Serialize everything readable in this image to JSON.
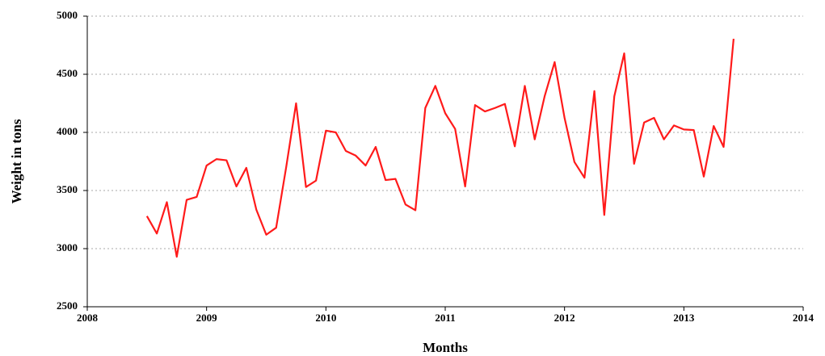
{
  "chart_data": {
    "type": "line",
    "x_label": "Months",
    "y_label": "Weight in tons",
    "x": [
      2008.5,
      2008.583,
      2008.667,
      2008.75,
      2008.833,
      2008.917,
      2009,
      2009.083,
      2009.167,
      2009.25,
      2009.333,
      2009.417,
      2009.5,
      2009.583,
      2009.667,
      2009.75,
      2009.833,
      2009.917,
      2010,
      2010.083,
      2010.167,
      2010.25,
      2010.333,
      2010.417,
      2010.5,
      2010.583,
      2010.667,
      2010.75,
      2010.833,
      2010.917,
      2011,
      2011.083,
      2011.167,
      2011.25,
      2011.333,
      2011.417,
      2011.5,
      2011.583,
      2011.667,
      2011.75,
      2011.833,
      2011.917,
      2012,
      2012.083,
      2012.167,
      2012.25,
      2012.333,
      2012.417,
      2012.5,
      2012.583,
      2012.667,
      2012.75,
      2012.833,
      2012.917,
      2013,
      2013.083,
      2013.167,
      2013.25,
      2013.333,
      2013.417
    ],
    "series": [
      {
        "name": "Weight",
        "color": "#ff1a1a",
        "values": [
          3280,
          3130,
          3400,
          2930,
          3420,
          3445,
          3715,
          3770,
          3760,
          3535,
          3695,
          3335,
          3120,
          3180,
          3700,
          4250,
          3530,
          3585,
          4015,
          4000,
          3840,
          3800,
          3715,
          3875,
          3590,
          3600,
          3380,
          3330,
          4210,
          4400,
          4165,
          4030,
          3535,
          4235,
          4180,
          4210,
          4245,
          3880,
          4400,
          3940,
          4310,
          4605,
          4125,
          3745,
          3610,
          4355,
          3290,
          4310,
          4680,
          3730,
          4085,
          4125,
          3940,
          4060,
          4025,
          4020,
          3620,
          4055,
          3875,
          4805
        ]
      }
    ],
    "xlim": [
      2008,
      2014
    ],
    "xticks": [
      2008,
      2009,
      2010,
      2011,
      2012,
      2013,
      2014
    ],
    "ylim": [
      2500,
      5000
    ],
    "yticks": [
      2500,
      3000,
      3500,
      4000,
      4500,
      5000
    ],
    "grid": true
  }
}
